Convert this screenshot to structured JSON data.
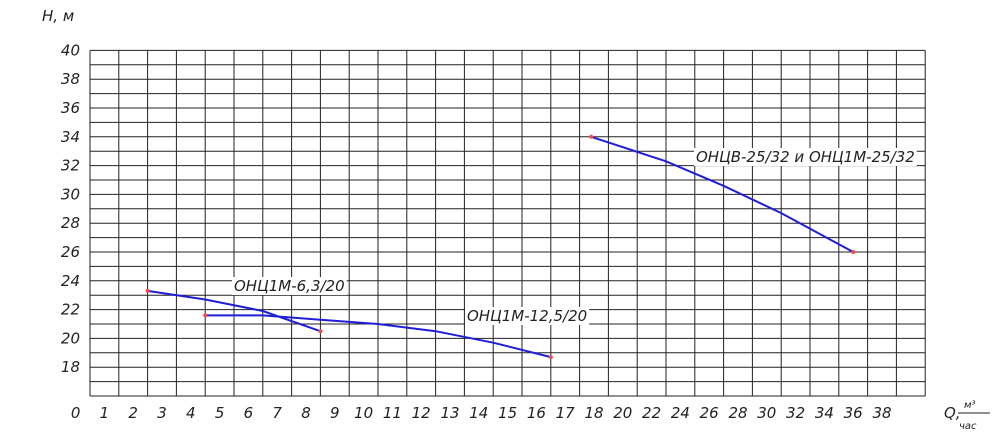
{
  "chart_data": {
    "type": "line",
    "ylabel": "Н, м",
    "xlabel": "Q,",
    "xlabel_unit_top": "м³",
    "xlabel_unit_bottom": "час",
    "y_ticks": [
      "18",
      "20",
      "22",
      "24",
      "26",
      "28",
      "30",
      "32",
      "34",
      "36",
      "38",
      "40"
    ],
    "x_ticks": [
      "0",
      "1",
      "2",
      "3",
      "4",
      "5",
      "6",
      "7",
      "8",
      "9",
      "10",
      "11",
      "12",
      "13",
      "14",
      "15",
      "16",
      "17",
      "18",
      "20",
      "22",
      "24",
      "26",
      "28",
      "30",
      "32",
      "34",
      "36",
      "38"
    ],
    "ylim": [
      16,
      40
    ],
    "grid": true,
    "colors": {
      "line": "#1f1fd6",
      "marker": "#ff4a4a",
      "grid": "#222222"
    },
    "series": [
      {
        "name": "ОНЦ1М-6,3/20",
        "points": [
          [
            2,
            23.3
          ],
          [
            4,
            22.7
          ],
          [
            6,
            21.9
          ],
          [
            8,
            20.5
          ]
        ]
      },
      {
        "name": "ОНЦ1М-12,5/20",
        "points": [
          [
            4,
            21.6
          ],
          [
            6,
            21.6
          ],
          [
            8,
            21.3
          ],
          [
            10,
            21.0
          ],
          [
            12,
            20.5
          ],
          [
            14,
            19.7
          ],
          [
            16,
            18.7
          ]
        ]
      },
      {
        "name": "ОНЦВ-25/32 и ОНЦ1М-25/32",
        "points": [
          [
            17.4,
            34.0
          ],
          [
            22,
            32.3
          ],
          [
            26,
            30.6
          ],
          [
            30,
            28.7
          ],
          [
            35,
            26.0
          ]
        ]
      }
    ]
  }
}
